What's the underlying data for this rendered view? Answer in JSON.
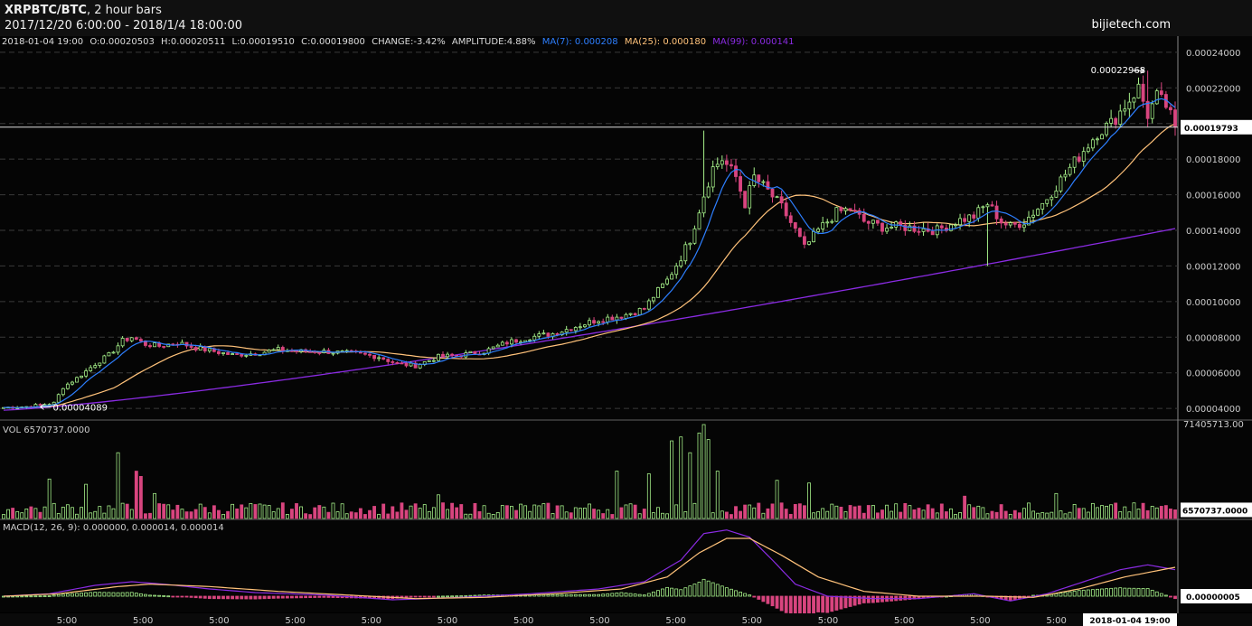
{
  "header": {
    "symbol": "XRPBTC/BTC",
    "interval": ", 2 hour bars",
    "range": "2017/12/20 6:00:00 - 2018/1/4 18:00:00",
    "brand": "bijietech.com"
  },
  "ohlc": {
    "date": "2018-01-04 19:00",
    "open": "O:0.00020503",
    "high": "H:0.00020511",
    "low": "L:0.00019510",
    "close": "C:0.00019800",
    "change": "CHANGE:-3.42%",
    "amplitude": "AMPLITUDE:4.88%",
    "ma7": "MA(7): 0.000208",
    "ma25": "MA(25): 0.000180",
    "ma99": "MA(99): 0.000141"
  },
  "colors": {
    "up": "#a6f08a",
    "down": "#d8457f",
    "ma7": "#2d7fff",
    "ma25": "#ffc27a",
    "ma99": "#8a2be2",
    "macd": "#8a2be2",
    "signal": "#ffc27a",
    "grid": "#3a3a3a",
    "axis": "#cccccc"
  },
  "chart_data": {
    "type": "candlestick",
    "title": "XRPBTC/BTC, 2 hour bars",
    "price_axis": {
      "ylim": [
        3.5e-05,
        0.000245
      ],
      "ticks": [
        "0.00004000",
        "0.00006000",
        "0.00008000",
        "0.00010000",
        "0.00012000",
        "0.00014000",
        "0.00016000",
        "0.00018000",
        "0.00020000",
        "0.00022000",
        "0.00024000"
      ],
      "tick_values": [
        4e-05,
        6e-05,
        8e-05,
        0.0001,
        0.00012,
        0.00014,
        0.00016,
        0.00018,
        0.0002,
        0.00022,
        0.00024
      ],
      "current": "0.00019793",
      "current_value": 0.00019793,
      "high_marker": "0.00022968",
      "high_value": 0.00022968,
      "low_marker": "0.00004089",
      "low_value": 4.089e-05
    },
    "x_ticks": [
      "5:00",
      "5:00",
      "5:00",
      "5:00",
      "5:00",
      "5:00",
      "5:00",
      "5:00",
      "5:00",
      "5:00",
      "5:00",
      "5:00",
      "5:00",
      "5:00"
    ],
    "last_time": "2018-01-04 19:00",
    "anchors": [
      [
        0,
        4.05e-05
      ],
      [
        5,
        4.1e-05
      ],
      [
        8,
        4.2e-05
      ],
      [
        11,
        4.3e-05
      ],
      [
        13,
        5.2e-05
      ],
      [
        16,
        5.7e-05
      ],
      [
        20,
        6.5e-05
      ],
      [
        23,
        7e-05
      ],
      [
        26,
        7.8e-05
      ],
      [
        28,
        8e-05
      ],
      [
        31,
        7.6e-05
      ],
      [
        34,
        7.5e-05
      ],
      [
        38,
        7.7e-05
      ],
      [
        42,
        7.4e-05
      ],
      [
        46,
        7.2e-05
      ],
      [
        50,
        7e-05
      ],
      [
        55,
        7.1e-05
      ],
      [
        60,
        7.3e-05
      ],
      [
        65,
        7.2e-05
      ],
      [
        70,
        7.2e-05
      ],
      [
        76,
        7.1e-05
      ],
      [
        82,
        6.9e-05
      ],
      [
        86,
        6.5e-05
      ],
      [
        90,
        6.4e-05
      ],
      [
        95,
        6.9e-05
      ],
      [
        100,
        7e-05
      ],
      [
        105,
        7.2e-05
      ],
      [
        110,
        7.7e-05
      ],
      [
        115,
        8e-05
      ],
      [
        120,
        8.2e-05
      ],
      [
        125,
        8.6e-05
      ],
      [
        130,
        9e-05
      ],
      [
        135,
        9.2e-05
      ],
      [
        140,
        9.6e-05
      ],
      [
        142,
        0.000103
      ],
      [
        145,
        0.000112
      ],
      [
        148,
        0.000125
      ],
      [
        150,
        0.000135
      ],
      [
        153,
        0.00016
      ],
      [
        155,
        0.000175
      ],
      [
        157,
        0.00018
      ],
      [
        160,
        0.00017
      ],
      [
        162,
        0.000155
      ],
      [
        164,
        0.00017
      ],
      [
        167,
        0.000162
      ],
      [
        170,
        0.000153
      ],
      [
        173,
        0.00014
      ],
      [
        175,
        0.00013
      ],
      [
        178,
        0.00014
      ],
      [
        182,
        0.00015
      ],
      [
        185,
        0.000152
      ],
      [
        188,
        0.000145
      ],
      [
        192,
        0.000142
      ],
      [
        196,
        0.000142
      ],
      [
        200,
        0.000141
      ],
      [
        204,
        0.00014
      ],
      [
        208,
        0.000145
      ],
      [
        212,
        0.000148
      ],
      [
        215,
        0.000155
      ],
      [
        218,
        0.000145
      ],
      [
        220,
        0.000142
      ],
      [
        223,
        0.000145
      ],
      [
        227,
        0.000155
      ],
      [
        230,
        0.000165
      ],
      [
        233,
        0.000175
      ],
      [
        236,
        0.000185
      ],
      [
        239,
        0.000195
      ],
      [
        242,
        0.0002
      ],
      [
        245,
        0.00021
      ],
      [
        248,
        0.00022
      ],
      [
        250,
        0.000205
      ],
      [
        252,
        0.000215
      ],
      [
        254,
        0.00021
      ],
      [
        256,
        0.000198
      ]
    ],
    "bars": 257,
    "volume": {
      "label": "VOL 6570737.0000",
      "max": "71405713.00",
      "max_value": 71405713,
      "current": "6570737.0000",
      "current_value": 6570737,
      "spikes": [
        [
          10,
          30000000
        ],
        [
          18,
          26000000
        ],
        [
          25,
          50000000
        ],
        [
          29,
          36000000
        ],
        [
          30,
          32000000
        ],
        [
          33,
          19000000
        ],
        [
          95,
          18000000
        ],
        [
          134,
          36000000
        ],
        [
          141,
          34000000
        ],
        [
          146,
          59000000
        ],
        [
          148,
          62000000
        ],
        [
          150,
          50000000
        ],
        [
          152,
          65000000
        ],
        [
          153,
          71400000
        ],
        [
          154,
          60000000
        ],
        [
          156,
          36000000
        ],
        [
          169,
          29000000
        ],
        [
          176,
          27000000
        ],
        [
          210,
          17000000
        ],
        [
          230,
          19000000
        ]
      ]
    },
    "macd": {
      "label": "MACD(12, 26, 9): 0.000000, 0.000014, 0.000014",
      "current": "0.00000005",
      "current_value": 5e-08,
      "macd_anchors": [
        [
          0,
          0
        ],
        [
          10,
          2e-06
        ],
        [
          20,
          9e-06
        ],
        [
          28,
          1.2e-05
        ],
        [
          35,
          1e-05
        ],
        [
          45,
          6e-06
        ],
        [
          55,
          3e-06
        ],
        [
          70,
          1e-06
        ],
        [
          85,
          -3e-06
        ],
        [
          100,
          -1e-06
        ],
        [
          115,
          2e-06
        ],
        [
          130,
          6e-06
        ],
        [
          140,
          1.2e-05
        ],
        [
          148,
          3e-05
        ],
        [
          153,
          5.2e-05
        ],
        [
          158,
          5.5e-05
        ],
        [
          163,
          4.9e-05
        ],
        [
          168,
          3e-05
        ],
        [
          173,
          1e-05
        ],
        [
          180,
          0.0
        ],
        [
          190,
          -2e-06
        ],
        [
          200,
          -2e-06
        ],
        [
          212,
          2e-06
        ],
        [
          220,
          -4e-06
        ],
        [
          228,
          2e-06
        ],
        [
          236,
          1.2e-05
        ],
        [
          244,
          2.2e-05
        ],
        [
          250,
          2.6e-05
        ],
        [
          256,
          2.2e-05
        ]
      ],
      "signal_anchors": [
        [
          0,
          0
        ],
        [
          12,
          2e-06
        ],
        [
          25,
          8e-06
        ],
        [
          32,
          1e-05
        ],
        [
          45,
          8e-06
        ],
        [
          60,
          4e-06
        ],
        [
          75,
          1e-06
        ],
        [
          90,
          -2e-06
        ],
        [
          105,
          -1e-06
        ],
        [
          120,
          2e-06
        ],
        [
          135,
          6e-06
        ],
        [
          145,
          1.6e-05
        ],
        [
          152,
          3.6e-05
        ],
        [
          158,
          4.8e-05
        ],
        [
          163,
          4.8e-05
        ],
        [
          170,
          3.4e-05
        ],
        [
          178,
          1.6e-05
        ],
        [
          188,
          4e-06
        ],
        [
          200,
          0.0
        ],
        [
          215,
          0.0
        ],
        [
          225,
          -1e-06
        ],
        [
          235,
          6e-06
        ],
        [
          245,
          1.6e-05
        ],
        [
          256,
          2.4e-05
        ]
      ],
      "ylim": [
        -1.2e-05,
        6e-05
      ]
    }
  }
}
